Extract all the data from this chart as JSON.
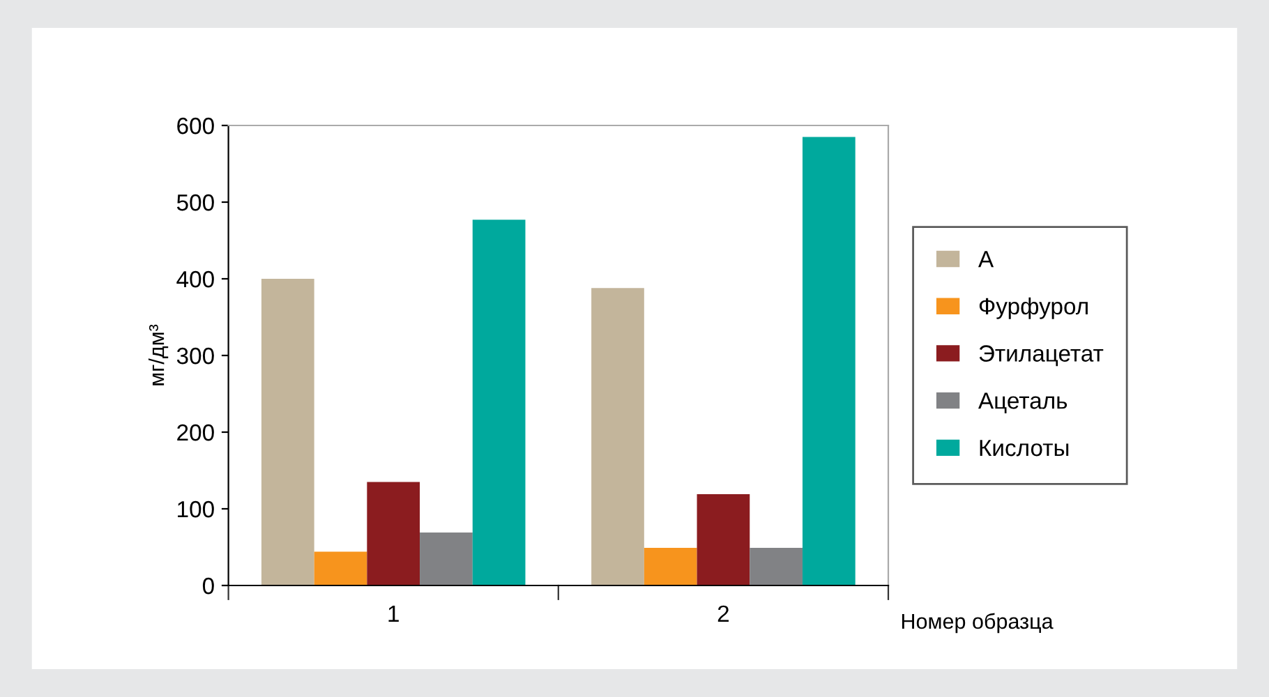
{
  "chart_data": {
    "type": "bar",
    "ylabel": "мг/дм³",
    "xlabel": "Номер образца",
    "categories": [
      "1",
      "2"
    ],
    "series": [
      {
        "name": "А",
        "color": "#c3b59b",
        "values": [
          400,
          388
        ]
      },
      {
        "name": "Фурфурол",
        "color": "#f7941d",
        "values": [
          44,
          49
        ]
      },
      {
        "name": "Этилацетат",
        "color": "#8b1c1f",
        "values": [
          135,
          119
        ]
      },
      {
        "name": "Ацеталь",
        "color": "#818285",
        "values": [
          69,
          49
        ]
      },
      {
        "name": "Кислоты",
        "color": "#00a99d",
        "values": [
          477,
          585
        ]
      }
    ],
    "ylim": [
      0,
      600
    ],
    "yticks": [
      0,
      100,
      200,
      300,
      400,
      500,
      600
    ],
    "grid": false,
    "legend": "right"
  }
}
